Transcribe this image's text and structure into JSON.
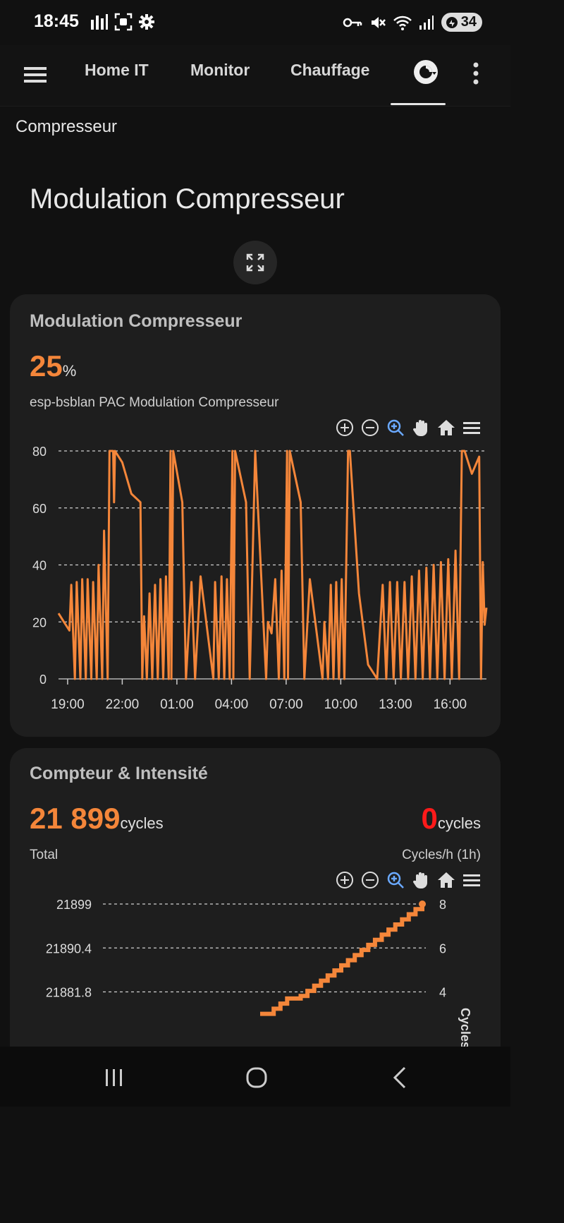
{
  "status_bar": {
    "time": "18:45",
    "battery": "34"
  },
  "tabs": [
    {
      "label": "Home IT"
    },
    {
      "label": "Monitor"
    },
    {
      "label": "Chauffage"
    }
  ],
  "section_title": "Compresseur",
  "page_title": "Modulation Compresseur",
  "card1": {
    "title": "Modulation Compresseur",
    "value": "25",
    "unit": "%",
    "entity": "esp-bsblan PAC Modulation Compresseur"
  },
  "card2": {
    "title": "Compteur & Intensité",
    "total_value": "21 899",
    "total_unit": "cycles",
    "total_label": "Total",
    "rate_value": "0",
    "rate_unit": "cycles",
    "rate_label": "Cycles/h (1h)"
  },
  "colors": {
    "accent": "#f4863a",
    "alert": "#ff1a1a",
    "card_bg": "#1e1e1e",
    "page_bg": "#111111"
  },
  "chart_data": [
    {
      "type": "line",
      "title": "",
      "xlabel": "",
      "ylabel": "",
      "ylim": [
        0,
        80
      ],
      "yticks": [
        0,
        20,
        40,
        60,
        80
      ],
      "xticks": [
        "19:00",
        "22:00",
        "01:00",
        "04:00",
        "07:00",
        "10:00",
        "13:00",
        "16:00"
      ],
      "x_range_hours": [
        18.5,
        42.0
      ],
      "grid": "horizontal dashed",
      "series": [
        {
          "x": [
            18.5,
            18.8,
            19.1,
            19.2,
            19.4,
            19.5,
            19.7,
            19.8,
            20.0,
            20.1,
            20.3,
            20.4,
            20.6,
            20.7,
            20.9,
            21.0,
            21.2,
            21.3,
            21.5,
            21.55,
            21.6,
            22.0,
            22.5,
            23.0,
            23.1,
            23.2,
            23.35,
            23.5,
            23.65,
            23.8,
            23.95,
            24.1,
            24.25,
            24.4,
            24.55,
            24.65,
            24.7,
            24.8,
            25.3,
            25.5,
            25.8,
            26.0,
            26.3,
            27.0,
            27.1,
            27.3,
            27.45,
            27.6,
            27.75,
            27.9,
            28.05,
            28.1,
            28.2,
            28.8,
            29.0,
            29.3,
            29.9,
            30.0,
            30.2,
            30.4,
            30.6,
            30.75,
            30.9,
            31.05,
            31.1,
            31.2,
            31.8,
            32.0,
            32.3,
            33.0,
            33.1,
            33.3,
            33.45,
            33.6,
            33.75,
            33.9,
            34.05,
            34.2,
            34.4,
            34.5,
            35.0,
            35.5,
            36.0,
            36.3,
            36.5,
            36.7,
            36.9,
            37.1,
            37.3,
            37.5,
            37.7,
            37.9,
            38.1,
            38.3,
            38.5,
            38.7,
            38.9,
            39.1,
            39.3,
            39.5,
            39.7,
            39.9,
            40.1,
            40.3,
            40.5,
            40.6,
            40.65,
            40.8,
            41.2,
            41.6,
            41.7,
            41.8,
            41.9,
            42.0
          ],
          "y": [
            23,
            20,
            17,
            33,
            0,
            34,
            0,
            35,
            0,
            35,
            0,
            34,
            0,
            40,
            0,
            52,
            0,
            80,
            80,
            62,
            80,
            76,
            65,
            62,
            0,
            22,
            0,
            30,
            0,
            33,
            0,
            35,
            0,
            36,
            0,
            80,
            0,
            80,
            62,
            0,
            34,
            0,
            36,
            0,
            34,
            0,
            36,
            0,
            35,
            0,
            80,
            0,
            80,
            62,
            0,
            80,
            0,
            20,
            16,
            35,
            0,
            38,
            0,
            80,
            0,
            80,
            62,
            0,
            35,
            0,
            20,
            0,
            33,
            0,
            34,
            0,
            35,
            0,
            80,
            80,
            30,
            5,
            0,
            33,
            0,
            34,
            0,
            34,
            0,
            34,
            0,
            36,
            0,
            38,
            0,
            39,
            0,
            40,
            0,
            41,
            0,
            42,
            0,
            45,
            0,
            55,
            80,
            80,
            72,
            78,
            0,
            41,
            19,
            25
          ]
        }
      ]
    },
    {
      "type": "line",
      "title": "",
      "xlabel": "",
      "ylabel": "",
      "y2label": "Cycles",
      "ylim": [
        21864.6,
        21899
      ],
      "yticks": [
        21881.8,
        21890.4,
        21899
      ],
      "y2ticks": [
        4,
        6,
        8
      ],
      "grid": "horizontal dashed",
      "series": [
        {
          "step": true,
          "x": [
            0,
            1,
            2,
            3,
            4,
            5,
            6,
            7,
            8,
            9,
            10,
            11,
            12,
            13,
            14,
            15,
            16,
            17,
            18,
            19,
            20,
            21,
            22,
            23,
            24
          ],
          "y": [
            21877.5,
            21877.5,
            21878.5,
            21879.5,
            21880.5,
            21880.5,
            21881.0,
            21882.0,
            21883.0,
            21884.0,
            21885.0,
            21886.0,
            21887.0,
            21888.0,
            21889.0,
            21890.0,
            21891.0,
            21892.0,
            21893.0,
            21894.0,
            21895.0,
            21896.0,
            21897.0,
            21898.0,
            21899.0
          ]
        }
      ]
    }
  ]
}
